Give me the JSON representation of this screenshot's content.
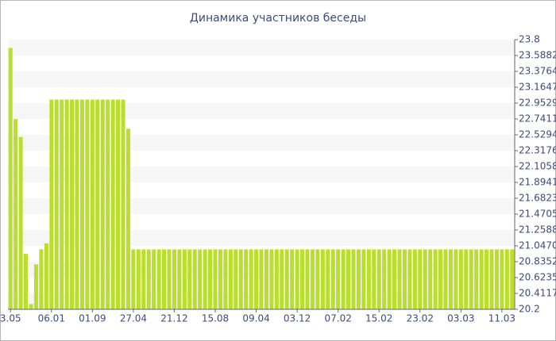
{
  "chart_data": {
    "type": "bar",
    "title": "Динамика участников беседы",
    "categories": [
      "3.05",
      null,
      null,
      null,
      null,
      null,
      null,
      null,
      "06.01",
      null,
      null,
      null,
      null,
      null,
      null,
      null,
      "01.09",
      null,
      null,
      null,
      null,
      null,
      null,
      null,
      "27.04",
      null,
      null,
      null,
      null,
      null,
      null,
      null,
      "21.12",
      null,
      null,
      null,
      null,
      null,
      null,
      null,
      "15.08",
      null,
      null,
      null,
      null,
      null,
      null,
      null,
      "09.04",
      null,
      null,
      null,
      null,
      null,
      null,
      null,
      "03.12",
      null,
      null,
      null,
      null,
      null,
      null,
      null,
      "07.02",
      null,
      null,
      null,
      null,
      null,
      null,
      null,
      "15.02",
      null,
      null,
      null,
      null,
      null,
      null,
      null,
      "23.02",
      null,
      null,
      null,
      null,
      null,
      null,
      null,
      "03.03",
      null,
      null,
      null,
      null,
      null,
      null,
      null,
      "11.03",
      null,
      null
    ],
    "values": [
      23.69,
      22.74,
      22.5,
      20.94,
      20.27,
      20.8,
      21.0,
      21.08,
      23.0,
      23.0,
      23.0,
      23.0,
      23.0,
      23.0,
      23.0,
      23.0,
      23.0,
      23.0,
      23.0,
      23.0,
      23.0,
      23.0,
      23.0,
      22.61,
      21.0,
      21.0,
      21.0,
      21.0,
      21.0,
      21.0,
      21.0,
      21.0,
      21.0,
      21.0,
      21.0,
      21.0,
      21.0,
      21.0,
      21.0,
      21.0,
      21.0,
      21.0,
      21.0,
      21.0,
      21.0,
      21.0,
      21.0,
      21.0,
      21.0,
      21.0,
      21.0,
      21.0,
      21.0,
      21.0,
      21.0,
      21.0,
      21.0,
      21.0,
      21.0,
      21.0,
      21.0,
      21.0,
      21.0,
      21.0,
      21.0,
      21.0,
      21.0,
      21.0,
      21.0,
      21.0,
      21.0,
      21.0,
      21.0,
      21.0,
      21.0,
      21.0,
      21.0,
      21.0,
      21.0,
      21.0,
      21.0,
      21.0,
      21.0,
      21.0,
      21.0,
      21.0,
      21.0,
      21.0,
      21.0,
      21.0,
      21.0,
      21.0,
      21.0,
      21.0,
      21.0,
      21.0,
      21.0,
      21.0,
      21.0
    ],
    "color": "#bade2c",
    "ylim": [
      20.2,
      23.8
    ],
    "yticks": [
      20.2,
      20.4117,
      20.6235,
      20.8352,
      {
        "value": 21.047,
        "label": "21.0470"
      },
      21.2588,
      21.4705,
      21.6823,
      21.8941,
      22.1058,
      22.3176,
      22.5294,
      22.7411,
      22.9529,
      23.1647,
      23.3764,
      23.5882,
      23.8
    ],
    "grid": true
  }
}
